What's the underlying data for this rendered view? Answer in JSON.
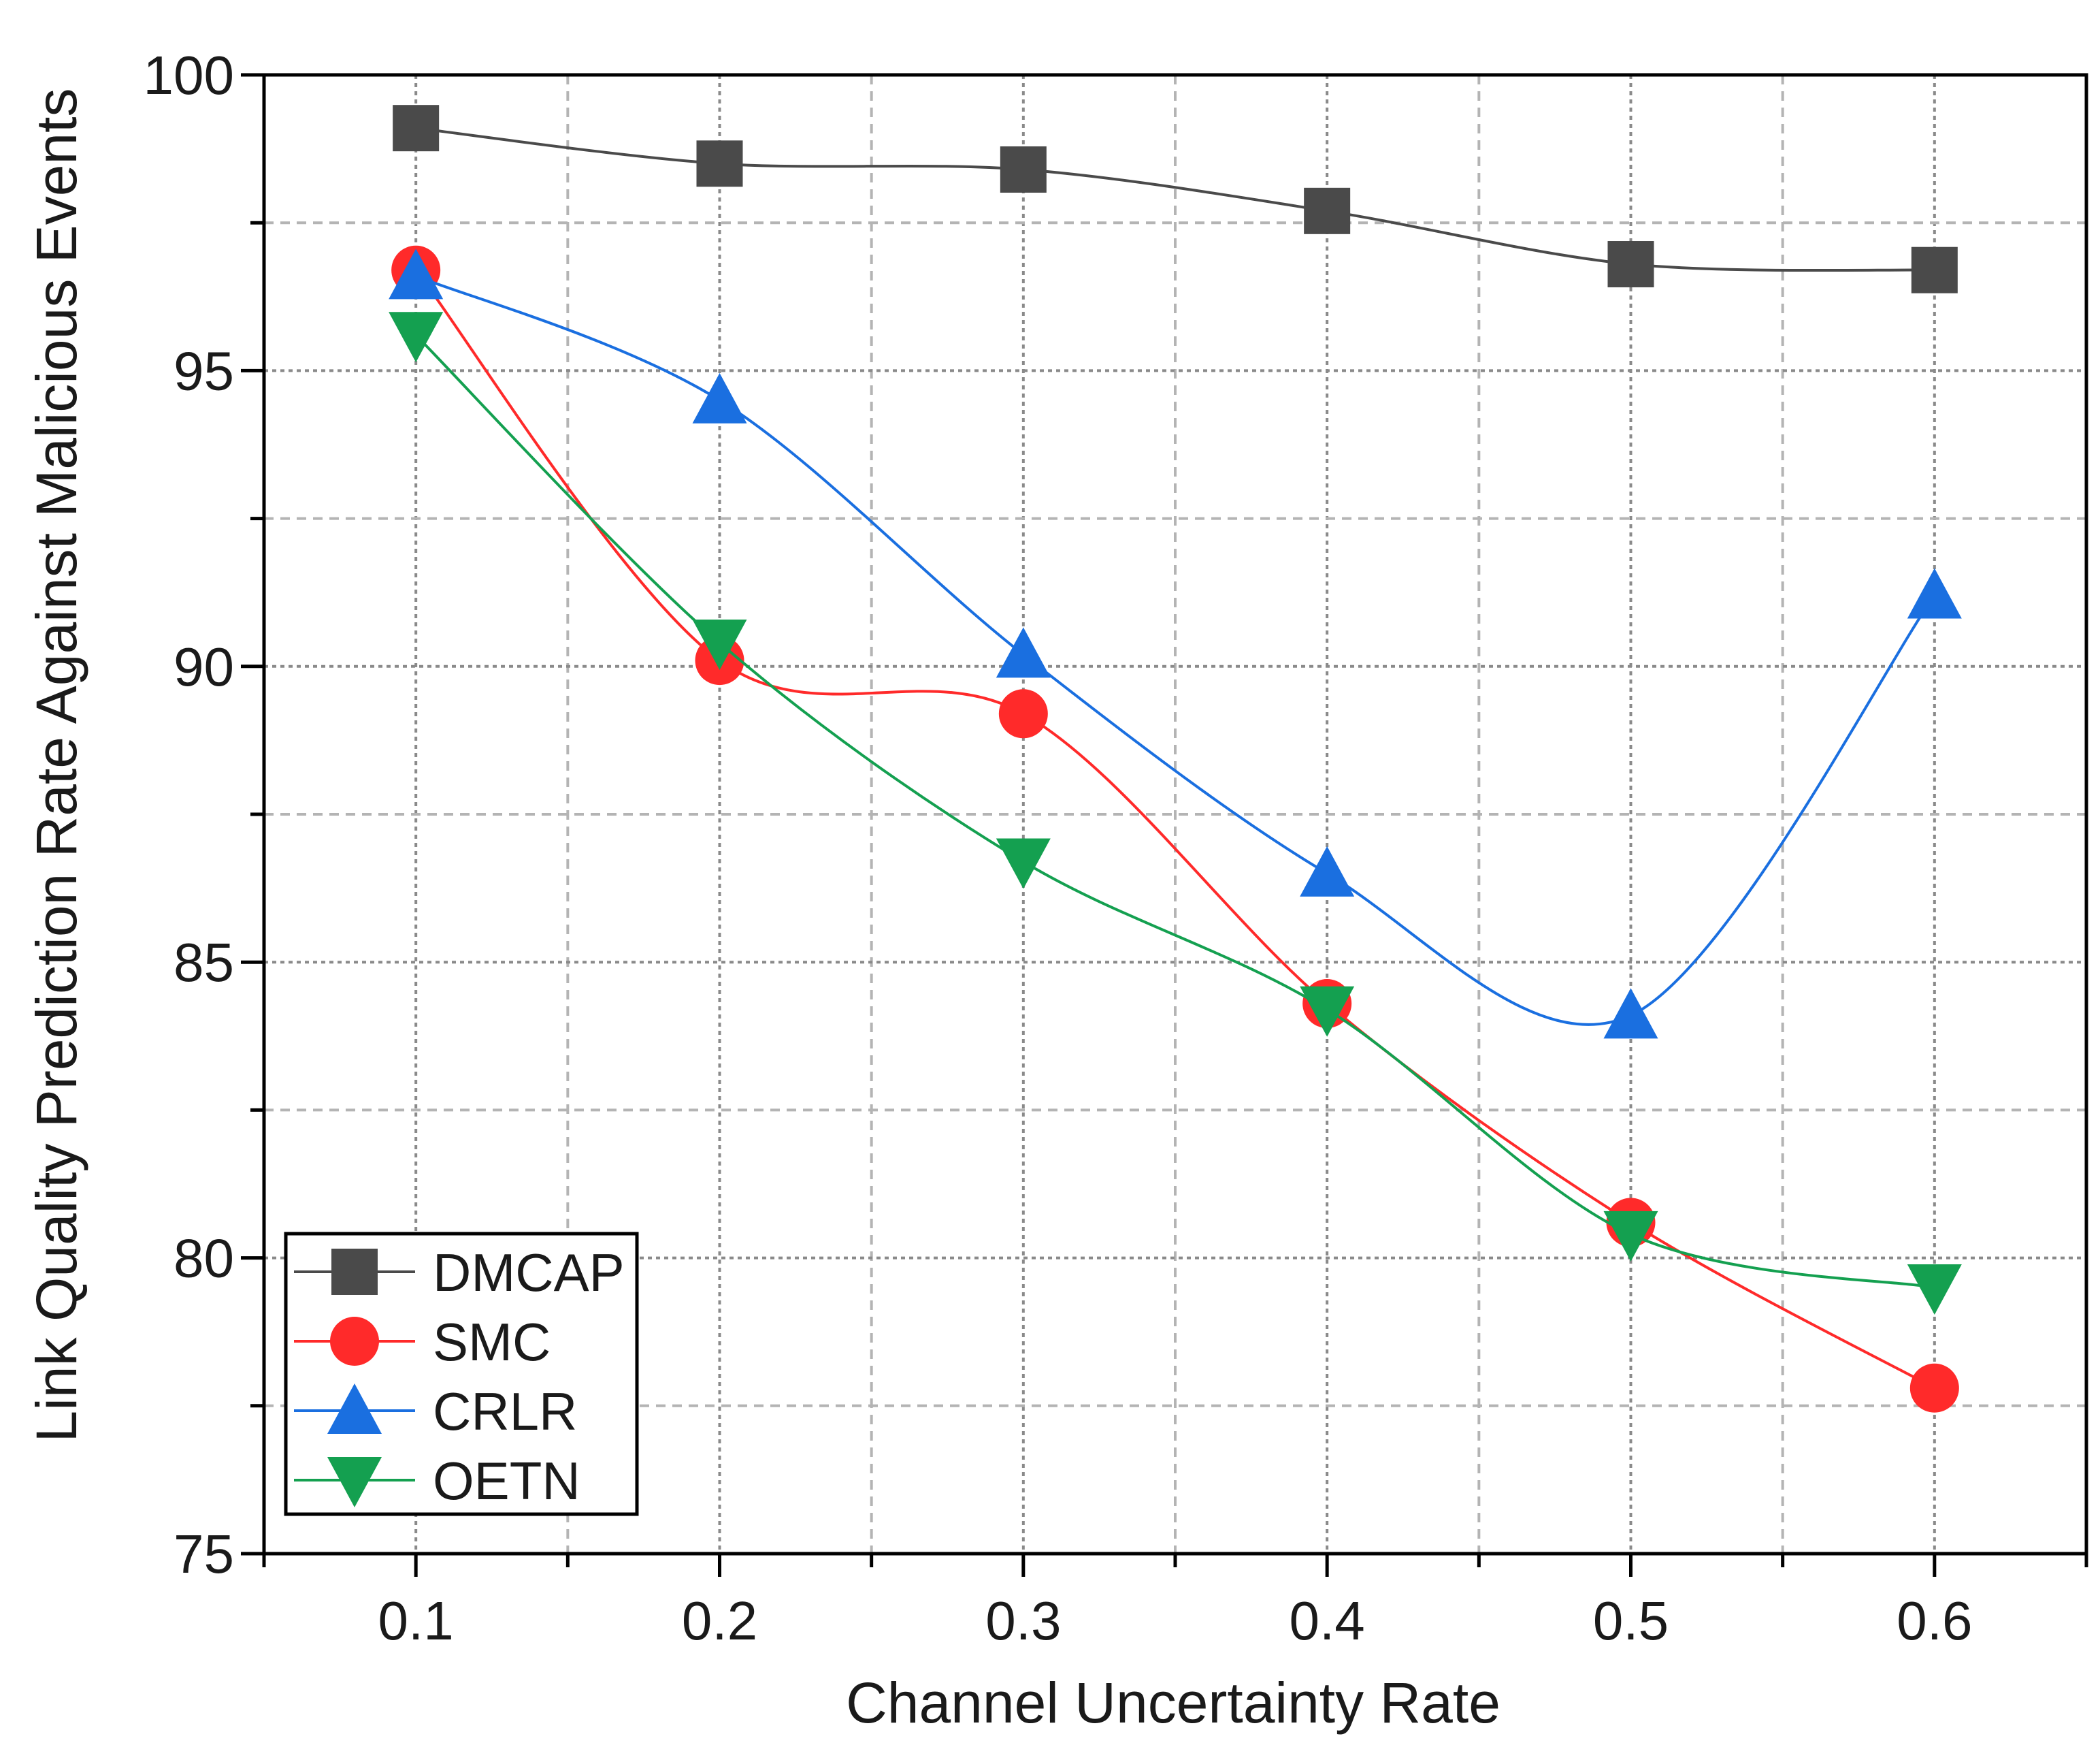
{
  "chart_data": {
    "type": "line",
    "title": "",
    "xlabel": "Channel Uncertainty Rate",
    "ylabel": "Link Quality Prediction Rate Against Malicious Events",
    "x": [
      0.1,
      0.2,
      0.3,
      0.4,
      0.5,
      0.6
    ],
    "x_tick_labels": [
      "0.1",
      "0.2",
      "0.3",
      "0.4",
      "0.5",
      "0.6"
    ],
    "y_ticks": [
      75,
      80,
      85,
      90,
      95,
      100
    ],
    "y_tick_labels": [
      "75",
      "80",
      "85",
      "90",
      "95",
      "100"
    ],
    "xlim": [
      0.05,
      0.65
    ],
    "ylim": [
      75,
      100
    ],
    "grid": true,
    "legend_position": "bottom-left",
    "series": [
      {
        "name": "DMCAP",
        "color": "#4a4a4a",
        "marker": "square",
        "values": [
          99.1,
          98.5,
          98.4,
          97.7,
          96.8,
          96.7
        ]
      },
      {
        "name": "SMC",
        "color": "#ff2a2a",
        "marker": "circle",
        "values": [
          96.7,
          90.1,
          89.2,
          84.3,
          80.6,
          77.8
        ]
      },
      {
        "name": "CRLR",
        "color": "#1a6fe0",
        "marker": "triangle-up",
        "values": [
          96.6,
          94.5,
          90.2,
          86.5,
          84.1,
          91.2
        ]
      },
      {
        "name": "OETN",
        "color": "#14a050",
        "marker": "triangle-down",
        "values": [
          95.6,
          90.4,
          86.7,
          84.2,
          80.4,
          79.5
        ]
      }
    ]
  }
}
